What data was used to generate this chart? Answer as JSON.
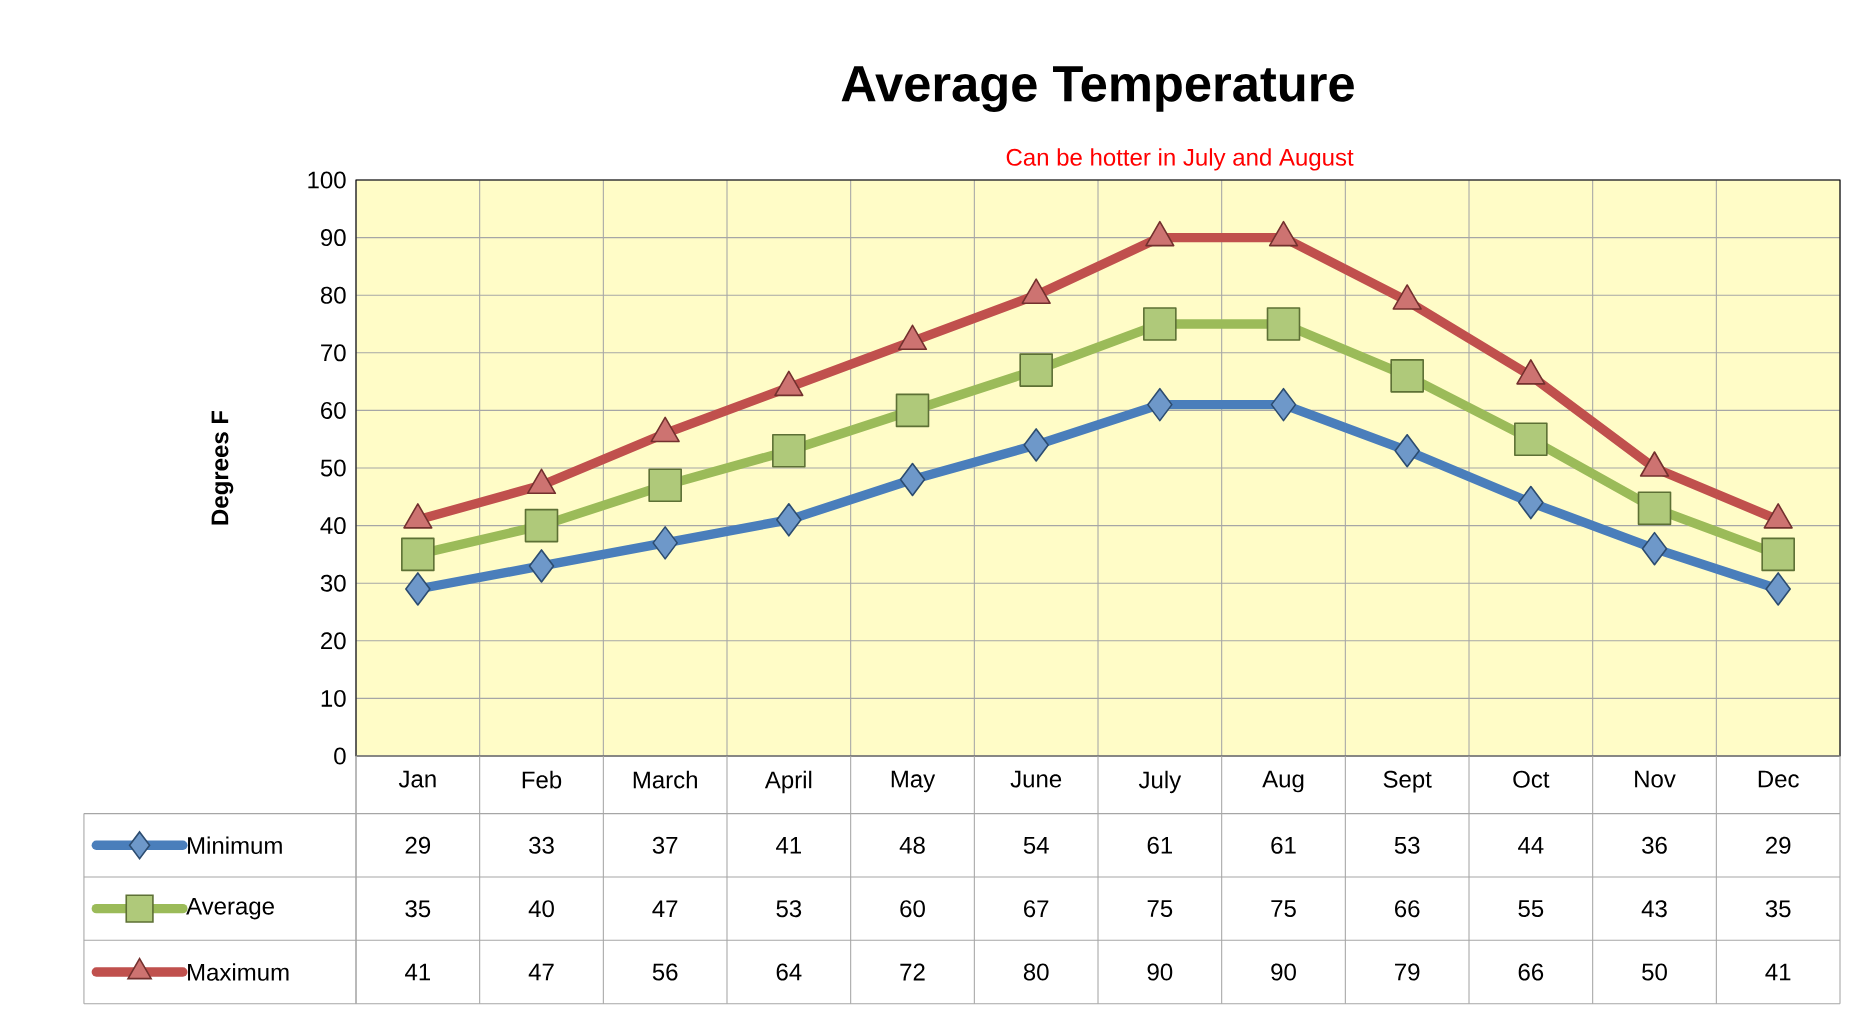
{
  "chart_data": {
    "type": "line",
    "title": "Average Temperature",
    "ylabel": "Degrees F",
    "annotations": [
      "Can be hotter in July and August"
    ],
    "categories": [
      "Jan",
      "Feb",
      "March",
      "April",
      "May",
      "June",
      "July",
      "Aug",
      "Sept",
      "Oct",
      "Nov",
      "Dec"
    ],
    "series": [
      {
        "name": "Minimum",
        "color": "#4a7ebb",
        "marker": "diamond",
        "values": [
          29,
          33,
          37,
          41,
          48,
          54,
          61,
          61,
          53,
          44,
          36,
          29
        ]
      },
      {
        "name": "Average",
        "color": "#9bbb59",
        "marker": "square",
        "values": [
          35,
          40,
          47,
          53,
          60,
          67,
          75,
          75,
          66,
          55,
          43,
          35
        ]
      },
      {
        "name": "Maximum",
        "color": "#c0504d",
        "marker": "triangle",
        "values": [
          41,
          47,
          56,
          64,
          72,
          80,
          90,
          90,
          79,
          66,
          50,
          41
        ]
      }
    ],
    "ylim": [
      0,
      100
    ],
    "yticks": [
      0,
      10,
      20,
      30,
      40,
      50,
      60,
      70,
      80,
      90,
      100
    ],
    "grid": true,
    "legend": "bottom left",
    "data_labels": true
  }
}
